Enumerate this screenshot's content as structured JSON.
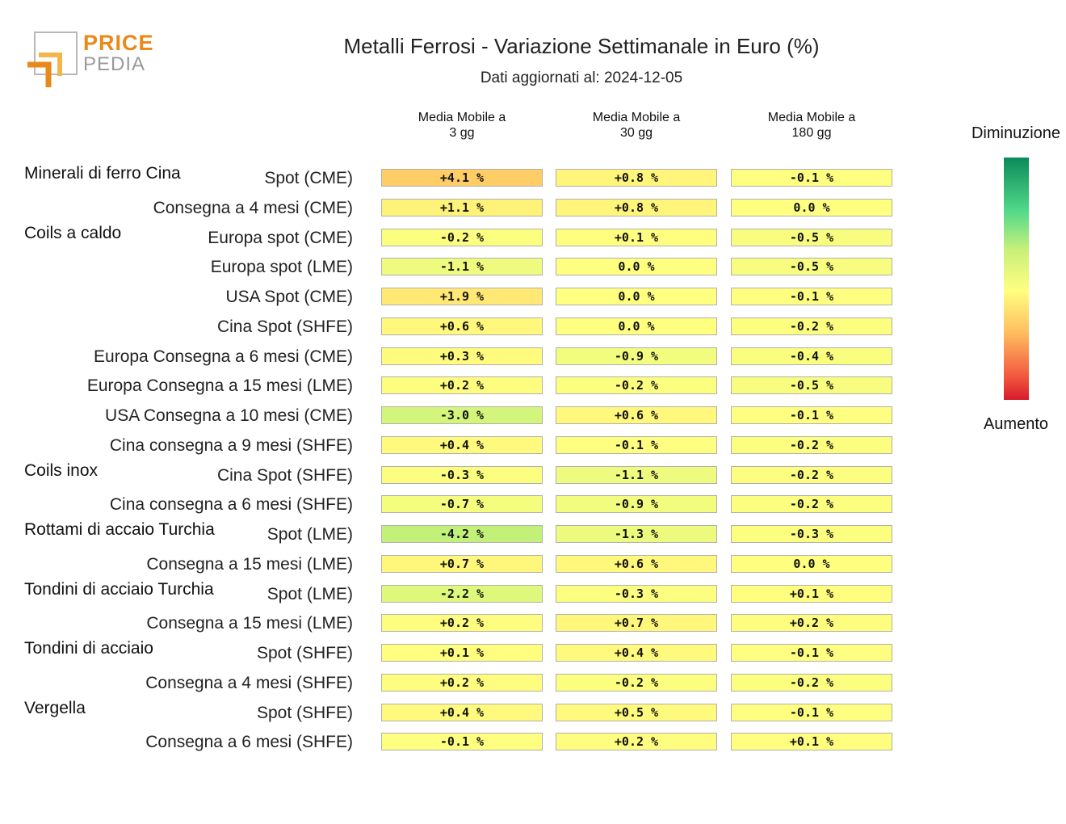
{
  "logo": {
    "line1": "PRICE",
    "line2": "PEDIA"
  },
  "header": {
    "title": "Metalli Ferrosi - Variazione Settimanale in Euro (%)",
    "subtitle": "Dati aggiornati al: 2024-12-05"
  },
  "legend": {
    "top": "Diminuzione",
    "bottom": "Aumento"
  },
  "chart_data": {
    "type": "heatmap",
    "columns": [
      "Media Mobile a\n3 gg",
      "Media Mobile a\n30 gg",
      "Media Mobile a\n180 gg"
    ],
    "rows": [
      {
        "group": "Minerali di ferro Cina",
        "label": "Spot (CME)",
        "values": [
          "+4.1 %",
          "+0.8 %",
          "-0.1 %"
        ]
      },
      {
        "group": "",
        "label": "Consegna a 4 mesi (CME)",
        "values": [
          "+1.1 %",
          "+0.8 %",
          "0.0 %"
        ]
      },
      {
        "group": "Coils a caldo",
        "label": "Europa spot (CME)",
        "values": [
          "-0.2 %",
          "+0.1 %",
          "-0.5 %"
        ]
      },
      {
        "group": "",
        "label": "Europa spot (LME)",
        "values": [
          "-1.1 %",
          "0.0 %",
          "-0.5 %"
        ]
      },
      {
        "group": "",
        "label": "USA Spot (CME)",
        "values": [
          "+1.9 %",
          "0.0 %",
          "-0.1 %"
        ]
      },
      {
        "group": "",
        "label": "Cina Spot (SHFE)",
        "values": [
          "+0.6 %",
          "0.0 %",
          "-0.2 %"
        ]
      },
      {
        "group": "",
        "label": "Europa Consegna a 6 mesi (CME)",
        "values": [
          "+0.3 %",
          "-0.9 %",
          "-0.4 %"
        ]
      },
      {
        "group": "",
        "label": "Europa Consegna a 15 mesi (LME)",
        "values": [
          "+0.2 %",
          "-0.2 %",
          "-0.5 %"
        ]
      },
      {
        "group": "",
        "label": "USA Consegna a 10 mesi (CME)",
        "values": [
          "-3.0 %",
          "+0.6 %",
          "-0.1 %"
        ]
      },
      {
        "group": "",
        "label": "Cina consegna a 9 mesi (SHFE)",
        "values": [
          "+0.4 %",
          "-0.1 %",
          "-0.2 %"
        ]
      },
      {
        "group": "Coils inox",
        "label": "Cina Spot (SHFE)",
        "values": [
          "-0.3 %",
          "-1.1 %",
          "-0.2 %"
        ]
      },
      {
        "group": "",
        "label": "Cina consegna a 6 mesi (SHFE)",
        "values": [
          "-0.7 %",
          "-0.9 %",
          "-0.2 %"
        ]
      },
      {
        "group": "Rottami di accaio Turchia",
        "label": "Spot (LME)",
        "values": [
          "-4.2 %",
          "-1.3 %",
          "-0.3 %"
        ]
      },
      {
        "group": "",
        "label": "Consegna a 15 mesi (LME)",
        "values": [
          "+0.7 %",
          "+0.6 %",
          "0.0 %"
        ]
      },
      {
        "group": "Tondini di acciaio Turchia",
        "label": "Spot (LME)",
        "values": [
          "-2.2 %",
          "-0.3 %",
          "+0.1 %"
        ]
      },
      {
        "group": "",
        "label": "Consegna a 15 mesi (LME)",
        "values": [
          "+0.2 %",
          "+0.7 %",
          "+0.2 %"
        ]
      },
      {
        "group": "Tondini di acciaio",
        "label": "Spot (SHFE)",
        "values": [
          "+0.1 %",
          "+0.4 %",
          "-0.1 %"
        ]
      },
      {
        "group": "",
        "label": "Consegna a 4 mesi (SHFE)",
        "values": [
          "+0.2 %",
          "-0.2 %",
          "-0.2 %"
        ]
      },
      {
        "group": "Vergella",
        "label": "Spot (SHFE)",
        "values": [
          "+0.4 %",
          "+0.5 %",
          "-0.1 %"
        ]
      },
      {
        "group": "",
        "label": "Consegna a 6 mesi (SHFE)",
        "values": [
          "-0.1 %",
          "+0.2 %",
          "+0.1 %"
        ]
      }
    ]
  }
}
